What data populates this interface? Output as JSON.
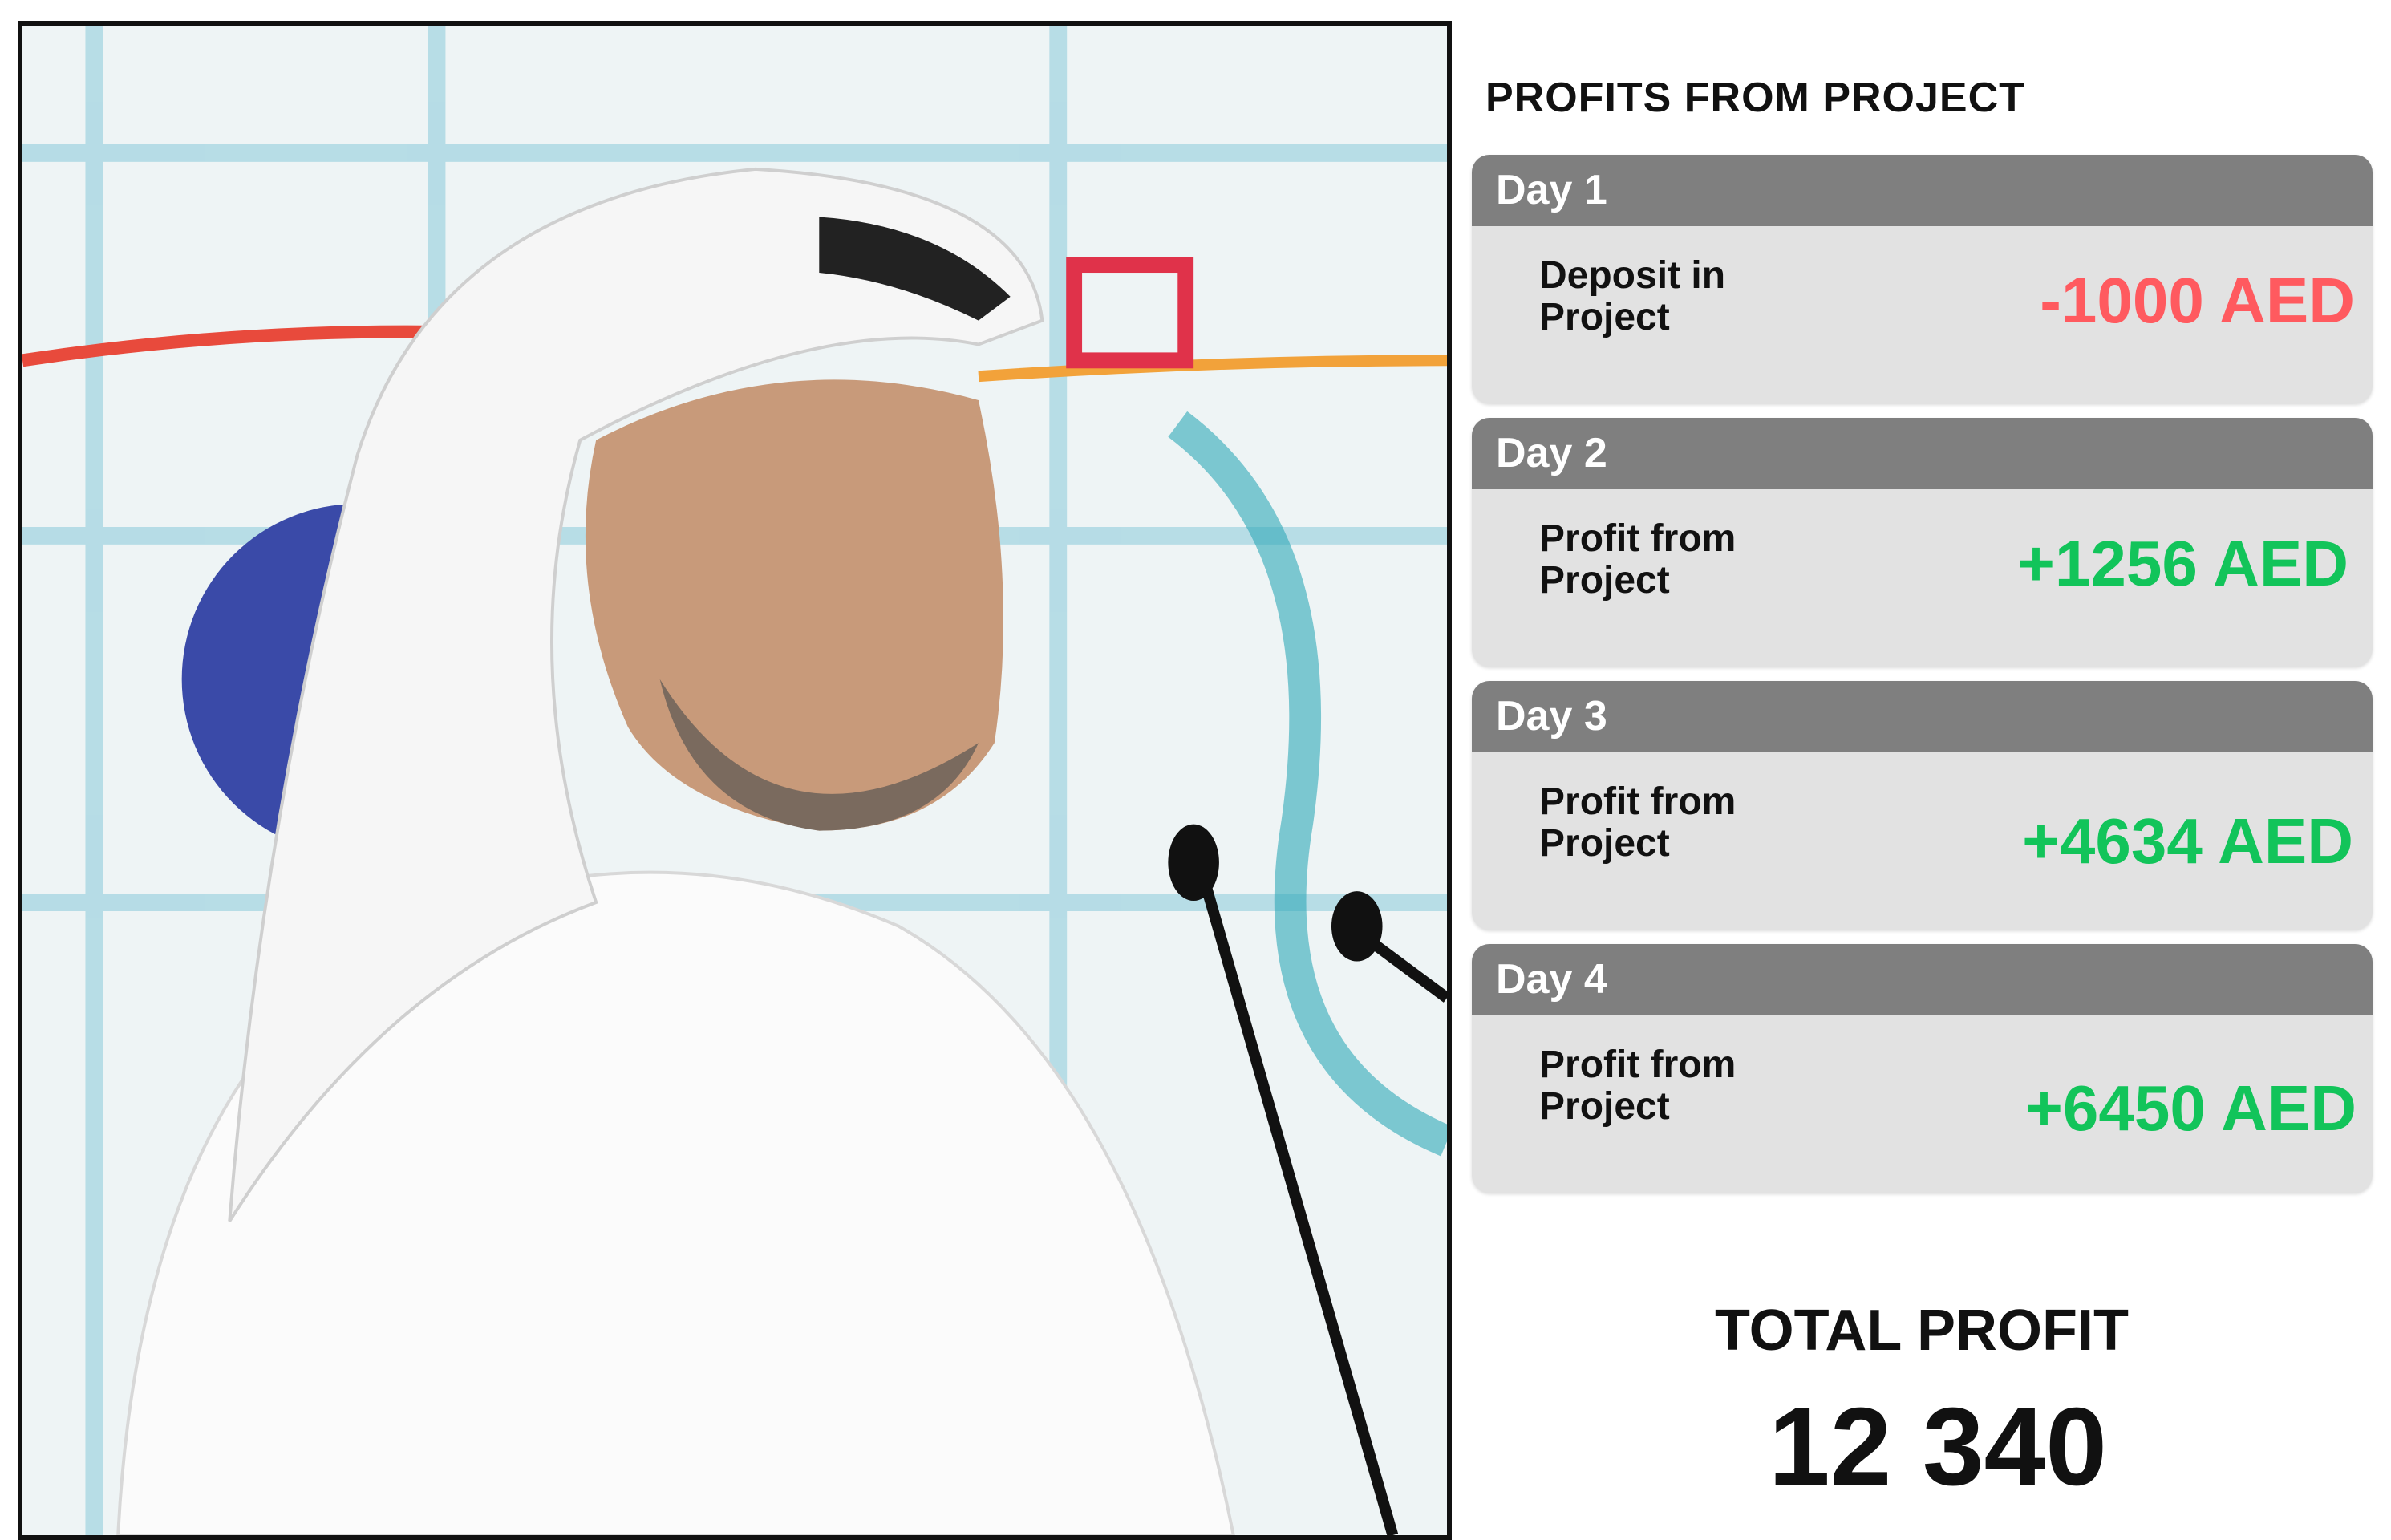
{
  "title": "PROFITS FROM PROJECT",
  "colors": {
    "negative": "#ff5a5f",
    "positive": "#12c45a",
    "header": "#7f7f7f",
    "card": "#e2e2e2"
  },
  "days": [
    {
      "day": "Day 1",
      "label": "Deposit in Project",
      "amount": "-1000 AED",
      "sign": "negative"
    },
    {
      "day": "Day 2",
      "label": "Profit from Project",
      "amount": "+1256 AED",
      "sign": "positive"
    },
    {
      "day": "Day 3",
      "label": "Profit from Project",
      "amount": "+4634 AED",
      "sign": "positive"
    },
    {
      "day": "Day 4",
      "label": "Profit from Project",
      "amount": "+6450 AED",
      "sign": "positive"
    }
  ],
  "total": {
    "label": "TOTAL PROFIT",
    "value": "12 340"
  }
}
